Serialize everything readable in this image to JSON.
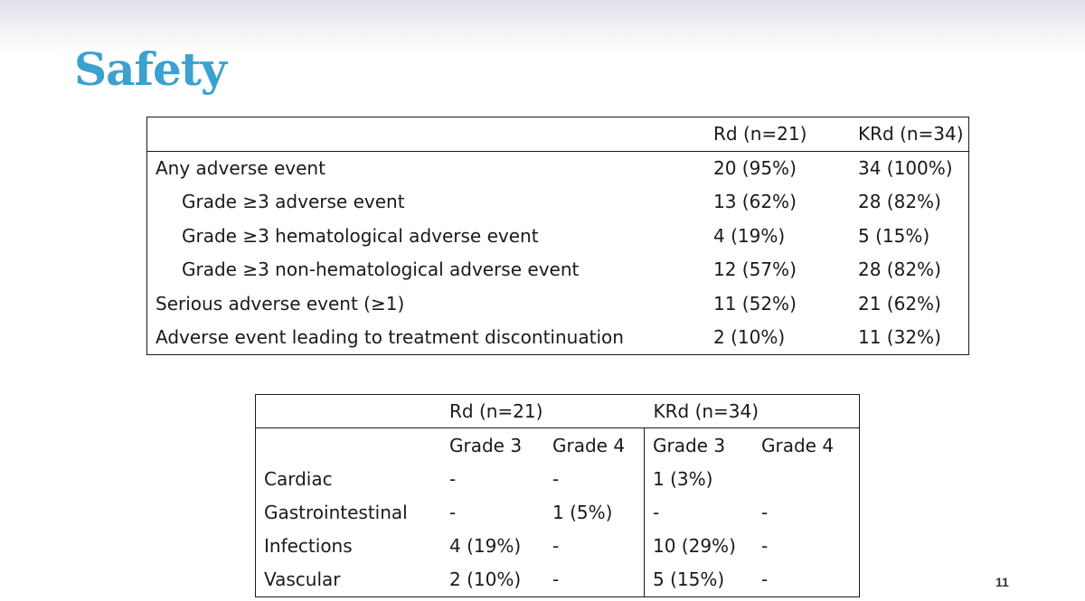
{
  "slide": {
    "title": "Safety",
    "page_number": "11",
    "accent_color": "#3ba1cf"
  },
  "summary_table": {
    "headers": [
      "",
      "Rd (n=21)",
      "KRd (n=34)"
    ],
    "rows": [
      {
        "label": "Any adverse event",
        "rd": "20 (95%)",
        "krd": "34 (100%)"
      },
      {
        "label": "Grade ≥3 adverse event",
        "rd": "13 (62%)",
        "krd": "28 (82%)"
      },
      {
        "label": "Grade ≥3 hematological adverse event",
        "rd": "4 (19%)",
        "krd": "5 (15%)"
      },
      {
        "label": "Grade ≥3 non-hematological adverse event",
        "rd": "12 (57%)",
        "krd": "28 (82%)"
      },
      {
        "label": "Serious adverse event (≥1)",
        "rd": "11 (52%)",
        "krd": "21 (62%)"
      },
      {
        "label": "Adverse event leading to treatment discontinuation",
        "rd": "2 (10%)",
        "krd": "11 (32%)"
      }
    ]
  },
  "grade_table": {
    "group_headers": [
      "Rd (n=21)",
      "KRd (n=34)"
    ],
    "sub_headers": [
      "Grade 3",
      "Grade 4",
      "Grade 3",
      "Grade 4"
    ],
    "rows": [
      {
        "label": "Cardiac",
        "rd_g3": "-",
        "rd_g4": "-",
        "krd_g3": "1 (3%)",
        "krd_g4": ""
      },
      {
        "label": "Gastrointestinal",
        "rd_g3": "-",
        "rd_g4": "1 (5%)",
        "krd_g3": "-",
        "krd_g4": "-"
      },
      {
        "label": "Infections",
        "rd_g3": "4 (19%)",
        "rd_g4": "-",
        "krd_g3": "10 (29%)",
        "krd_g4": "-"
      },
      {
        "label": "Vascular",
        "rd_g3": "2 (10%)",
        "rd_g4": "-",
        "krd_g3": "5 (15%)",
        "krd_g4": "-"
      }
    ]
  }
}
